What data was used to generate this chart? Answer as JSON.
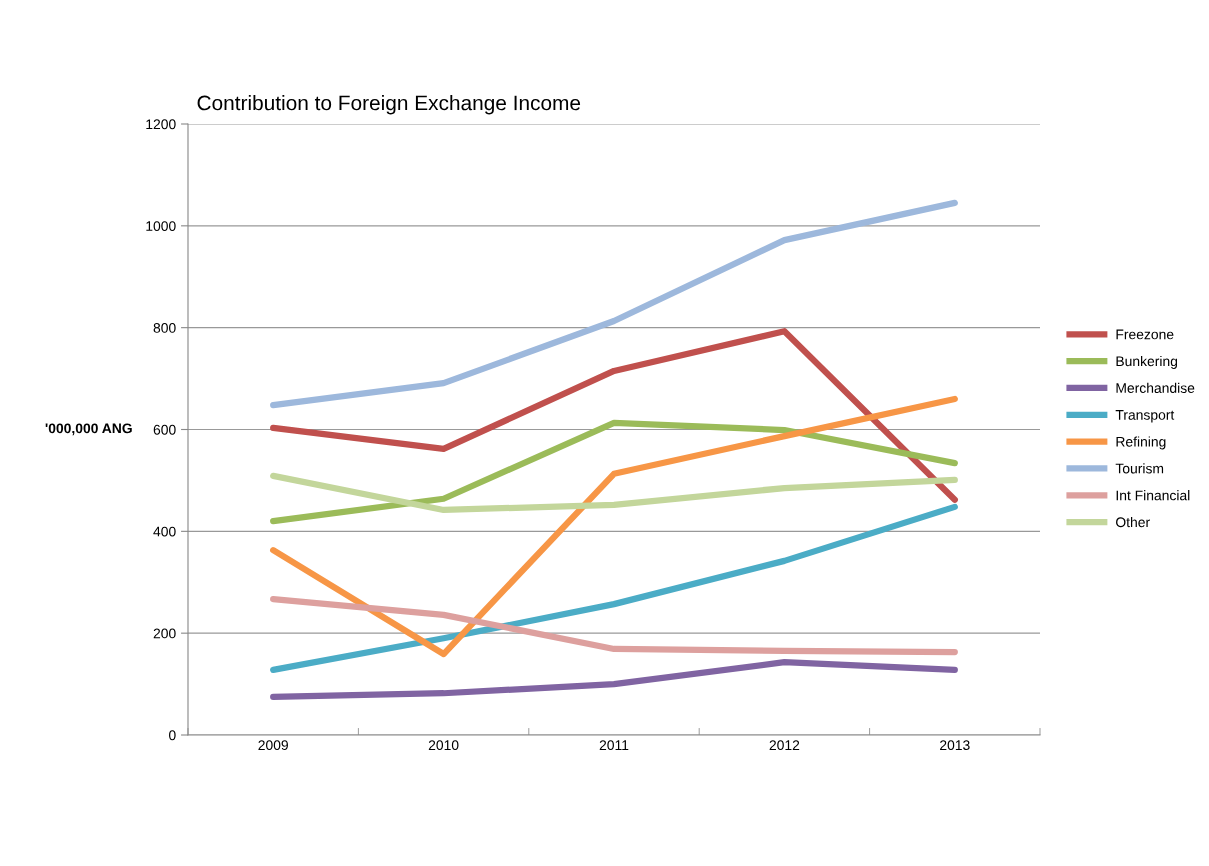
{
  "chart_data": {
    "type": "line",
    "title": "Contribution to Foreign Exchange Income",
    "ylabel": "'000,000 ANG",
    "categories": [
      "2009",
      "2010",
      "2011",
      "2012",
      "2013"
    ],
    "series": [
      {
        "name": "Freezone",
        "color": "#c0504d",
        "values": [
          603,
          562,
          715,
          793,
          462
        ]
      },
      {
        "name": "Bunkering",
        "color": "#9bbb59",
        "values": [
          420,
          464,
          613,
          599,
          534
        ]
      },
      {
        "name": "Merchandise",
        "color": "#8064a2",
        "values": [
          75,
          82,
          100,
          143,
          128
        ]
      },
      {
        "name": "Transport",
        "color": "#4bacc6",
        "values": [
          128,
          190,
          257,
          342,
          448
        ]
      },
      {
        "name": "Refining",
        "color": "#f79646",
        "values": [
          363,
          159,
          513,
          587,
          660
        ]
      },
      {
        "name": "Tourism",
        "color": "#9db8dc",
        "values": [
          648,
          691,
          813,
          972,
          1045
        ]
      },
      {
        "name": "Int Financial",
        "color": "#dda09e",
        "values": [
          267,
          236,
          169,
          165,
          163
        ]
      },
      {
        "name": "Other",
        "color": "#c3d69b",
        "values": [
          509,
          442,
          452,
          485,
          501
        ]
      }
    ],
    "ylim": [
      0,
      1200
    ],
    "yticks": [
      0,
      200,
      400,
      600,
      800,
      1000,
      1200
    ],
    "grid": "y",
    "legend": "right",
    "marker": "none",
    "line_style": "solid"
  }
}
